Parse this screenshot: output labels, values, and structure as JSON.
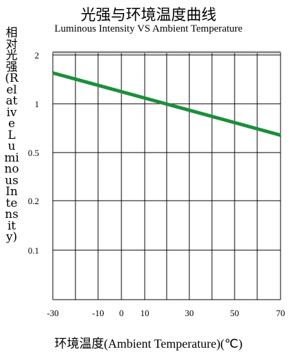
{
  "chart_data": {
    "type": "line",
    "title": "光强与环境温度曲线",
    "subtitle": "Luminous Intensity VS Ambient Temperature",
    "xlabel": "环境温度(Ambient Temperature)(℃)",
    "ylabel": "相对光强(Relative Luminous Intensity)",
    "ylabel_rendered": "相对光强(Relative Luminous Intensity)",
    "x_ticks": [
      "-30",
      "-10",
      "0",
      "10",
      "30",
      "50",
      "70"
    ],
    "x_tick_values": [
      -30,
      -10,
      0,
      10,
      30,
      50,
      70
    ],
    "y_ticks": [
      "2",
      "1",
      "0.5",
      "0.2",
      "0.1"
    ],
    "y_tick_values": [
      2,
      1,
      0.5,
      0.2,
      0.1
    ],
    "xlim": [
      -30,
      70
    ],
    "ylim": [
      0.05,
      2
    ],
    "y_scale": "log",
    "grid": true,
    "series": [
      {
        "color": "#1b8f3a",
        "x": [
          -30,
          70
        ],
        "y": [
          1.55,
          0.64
        ]
      }
    ]
  }
}
